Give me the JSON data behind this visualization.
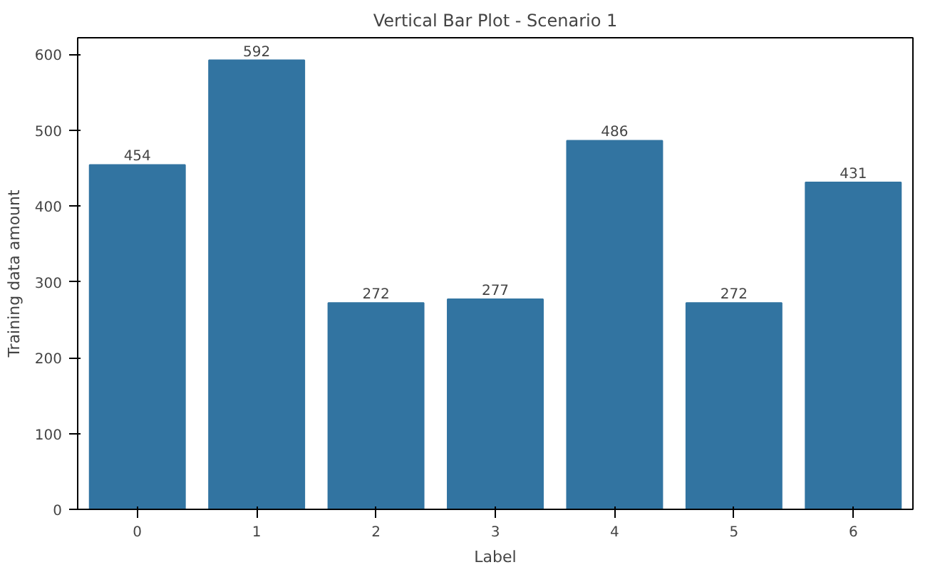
{
  "chart_data": {
    "type": "bar",
    "title": "Vertical Bar Plot - Scenario 1",
    "xlabel": "Label",
    "ylabel": "Training data amount",
    "categories": [
      "0",
      "1",
      "2",
      "3",
      "4",
      "5",
      "6"
    ],
    "values": [
      454,
      592,
      272,
      277,
      486,
      272,
      431
    ],
    "color": "#3274a1",
    "ylim": [
      0,
      621.6
    ],
    "yticks": [
      0,
      100,
      200,
      300,
      400,
      500,
      600
    ],
    "data_labels": true,
    "grid": false
  }
}
